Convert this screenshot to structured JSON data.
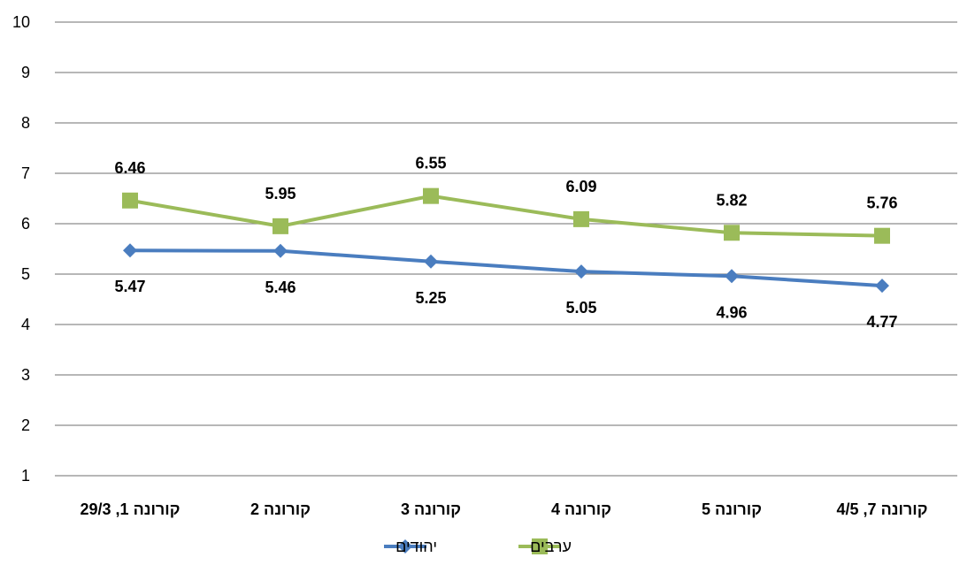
{
  "chart_data": {
    "type": "line",
    "categories": [
      "קורונה 1, 29/3",
      "קורונה 2",
      "קורונה 3",
      "קורונה 4",
      "קורונה 5",
      "קורונה 7, 4/5"
    ],
    "series": [
      {
        "name": "יהודים",
        "values": [
          5.47,
          5.46,
          5.25,
          5.05,
          4.96,
          4.77
        ],
        "color": "#4a7dbf",
        "marker": "diamond",
        "label_position": "below"
      },
      {
        "name": "ערבים",
        "values": [
          6.46,
          5.95,
          6.55,
          6.09,
          5.82,
          5.76
        ],
        "color": "#9bbb59",
        "marker": "square",
        "label_position": "above"
      }
    ],
    "ylim": [
      1,
      10
    ],
    "yticks": [
      "1",
      "2",
      "3",
      "4",
      "5",
      "6",
      "7",
      "8",
      "9",
      "10"
    ],
    "grid": "horizontal",
    "legend_position": "bottom",
    "title": "",
    "xlabel": "",
    "ylabel": ""
  }
}
